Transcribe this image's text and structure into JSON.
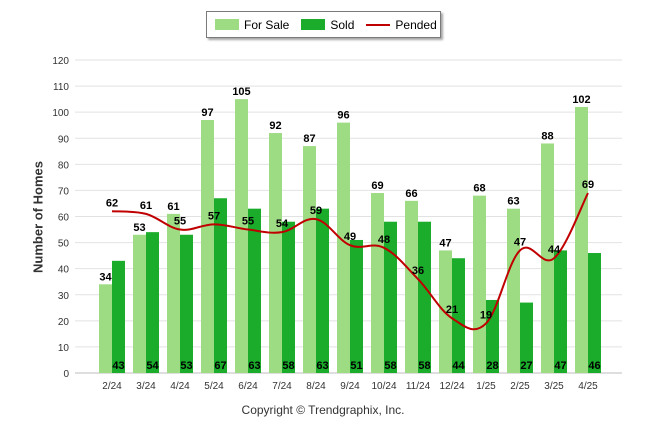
{
  "legend": {
    "for_sale": "For Sale",
    "sold": "Sold",
    "pended": "Pended"
  },
  "copyright": "Copyright © Trendgraphix, Inc.",
  "colors": {
    "for_sale": "#9edc84",
    "sold": "#1aac2a",
    "pended": "#c00000",
    "grid": "#e2e2e2"
  },
  "chart_data": {
    "type": "bar",
    "title": "",
    "xlabel": "",
    "ylabel": "Number of Homes",
    "ylim": [
      0,
      120
    ],
    "yticks": [
      0,
      10,
      20,
      30,
      40,
      50,
      60,
      70,
      80,
      90,
      100,
      110,
      120
    ],
    "grid": true,
    "legend_position": "top-center",
    "categories": [
      "2/24",
      "3/24",
      "4/24",
      "5/24",
      "6/24",
      "7/24",
      "8/24",
      "9/24",
      "10/24",
      "11/24",
      "12/24",
      "1/25",
      "2/25",
      "3/25",
      "4/25"
    ],
    "series": [
      {
        "name": "For Sale",
        "kind": "bar",
        "values": [
          34,
          53,
          61,
          97,
          105,
          92,
          87,
          96,
          69,
          66,
          47,
          68,
          63,
          88,
          102
        ]
      },
      {
        "name": "Sold",
        "kind": "bar",
        "values": [
          43,
          54,
          53,
          67,
          63,
          58,
          63,
          51,
          58,
          58,
          44,
          28,
          27,
          47,
          46
        ]
      },
      {
        "name": "Pended",
        "kind": "line",
        "values": [
          62,
          61,
          55,
          57,
          55,
          54,
          59,
          49,
          48,
          36,
          21,
          19,
          47,
          44,
          69
        ]
      }
    ]
  }
}
